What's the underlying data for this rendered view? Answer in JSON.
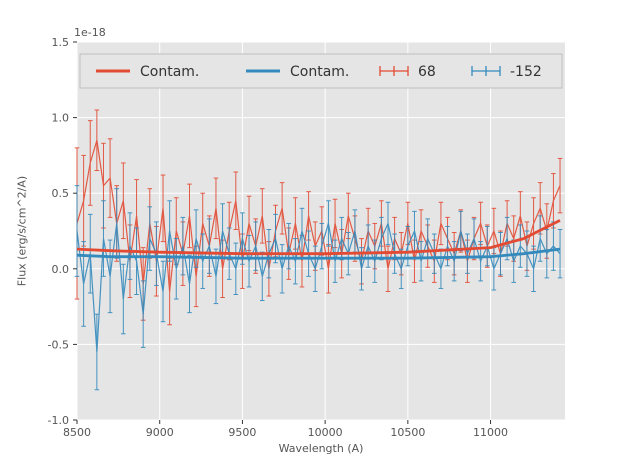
{
  "figure": {
    "background": "#ffffff",
    "plot_background": "#e5e5e5",
    "grid_color": "#ffffff",
    "text_color": "#555555",
    "red": "#E24A33",
    "blue": "#348ABD"
  },
  "chart_data": {
    "type": "line",
    "title": "",
    "xlabel": "Wavelength (A)",
    "ylabel": "Flux (erg/s/cm^2/A)",
    "offset_text": "1e-18",
    "xlim": [
      8500,
      11450
    ],
    "ylim": [
      -1.0,
      1.5
    ],
    "x_ticks": [
      8500,
      9000,
      9500,
      10000,
      10500,
      11000
    ],
    "y_ticks": [
      -1.0,
      -0.5,
      0.0,
      0.5,
      1.0,
      1.5
    ],
    "grid": true,
    "legend_position": "top",
    "legend": [
      {
        "label": "Contam.",
        "color": "#E24A33",
        "type": "line"
      },
      {
        "label": "Contam.",
        "color": "#348ABD",
        "type": "line"
      },
      {
        "label": "68",
        "color": "#E24A33",
        "type": "errorbar"
      },
      {
        "label": "-152",
        "color": "#348ABD",
        "type": "errorbar"
      }
    ],
    "x": [
      8500,
      8540,
      8580,
      8620,
      8660,
      8700,
      8740,
      8780,
      8820,
      8860,
      8900,
      8940,
      8980,
      9020,
      9060,
      9100,
      9140,
      9180,
      9220,
      9260,
      9300,
      9340,
      9380,
      9420,
      9460,
      9500,
      9540,
      9580,
      9620,
      9660,
      9700,
      9740,
      9780,
      9820,
      9860,
      9900,
      9940,
      9980,
      10020,
      10060,
      10100,
      10140,
      10180,
      10220,
      10260,
      10300,
      10340,
      10380,
      10420,
      10460,
      10500,
      10540,
      10580,
      10620,
      10660,
      10700,
      10740,
      10780,
      10820,
      10860,
      10900,
      10940,
      10980,
      11020,
      11060,
      11100,
      11140,
      11180,
      11220,
      11260,
      11300,
      11340,
      11380,
      11420
    ],
    "series": [
      {
        "name": "68",
        "type": "errorbar",
        "color": "#E24A33",
        "values": [
          0.3,
          0.45,
          0.7,
          0.85,
          0.55,
          0.6,
          0.3,
          0.45,
          0.05,
          0.35,
          -0.1,
          0.3,
          0.05,
          0.4,
          -0.15,
          0.25,
          0.1,
          0.35,
          -0.05,
          0.3,
          0.15,
          0.4,
          0.0,
          0.25,
          0.45,
          0.05,
          0.3,
          0.15,
          0.35,
          0.0,
          0.25,
          0.4,
          0.1,
          0.3,
          0.05,
          0.35,
          0.15,
          0.25,
          0.0,
          0.3,
          0.1,
          0.35,
          0.2,
          0.05,
          0.25,
          0.15,
          0.3,
          0.0,
          0.2,
          0.1,
          0.3,
          0.05,
          0.25,
          0.15,
          0.05,
          0.3,
          0.2,
          0.1,
          0.25,
          0.05,
          0.2,
          0.3,
          0.15,
          0.25,
          0.1,
          0.3,
          0.2,
          0.35,
          0.15,
          0.3,
          0.4,
          0.25,
          0.45,
          0.55
        ],
        "errors": [
          0.5,
          0.3,
          0.28,
          0.2,
          0.28,
          0.26,
          0.25,
          0.25,
          0.24,
          0.24,
          0.24,
          0.23,
          0.23,
          0.22,
          0.22,
          0.22,
          0.21,
          0.21,
          0.2,
          0.2,
          0.2,
          0.2,
          0.19,
          0.19,
          0.19,
          0.18,
          0.18,
          0.18,
          0.18,
          0.18,
          0.17,
          0.17,
          0.17,
          0.17,
          0.17,
          0.16,
          0.16,
          0.16,
          0.16,
          0.16,
          0.16,
          0.15,
          0.15,
          0.15,
          0.15,
          0.15,
          0.15,
          0.15,
          0.14,
          0.14,
          0.14,
          0.14,
          0.14,
          0.14,
          0.14,
          0.14,
          0.14,
          0.14,
          0.14,
          0.14,
          0.14,
          0.14,
          0.14,
          0.15,
          0.15,
          0.15,
          0.15,
          0.16,
          0.16,
          0.17,
          0.17,
          0.18,
          0.18,
          0.18
        ]
      },
      {
        "name": "-152",
        "type": "errorbar",
        "color": "#348ABD",
        "values": [
          0.25,
          -0.1,
          0.1,
          -0.55,
          0.2,
          -0.05,
          0.3,
          -0.2,
          0.15,
          0.05,
          -0.3,
          0.2,
          0.1,
          -0.15,
          0.25,
          0.0,
          0.15,
          -0.1,
          0.2,
          0.05,
          0.15,
          -0.05,
          0.25,
          0.1,
          0.0,
          0.2,
          0.05,
          0.15,
          -0.05,
          0.1,
          0.2,
          0.0,
          0.15,
          0.05,
          0.25,
          0.1,
          0.0,
          0.15,
          0.3,
          0.05,
          0.2,
          0.1,
          0.25,
          0.0,
          0.15,
          0.05,
          0.2,
          0.3,
          0.1,
          0.0,
          0.15,
          0.25,
          0.05,
          0.2,
          0.1,
          0.0,
          0.15,
          0.05,
          0.25,
          0.1,
          0.2,
          0.05,
          0.15,
          0.0,
          0.1,
          0.2,
          0.05,
          0.15,
          0.1,
          0.0,
          0.2,
          0.1,
          0.15,
          0.1
        ],
        "errors": [
          0.3,
          0.28,
          0.26,
          0.25,
          0.25,
          0.24,
          0.23,
          0.23,
          0.22,
          0.22,
          0.22,
          0.21,
          0.21,
          0.2,
          0.2,
          0.2,
          0.19,
          0.19,
          0.19,
          0.18,
          0.18,
          0.18,
          0.18,
          0.17,
          0.17,
          0.17,
          0.17,
          0.16,
          0.16,
          0.16,
          0.16,
          0.16,
          0.15,
          0.15,
          0.15,
          0.15,
          0.15,
          0.15,
          0.15,
          0.14,
          0.14,
          0.14,
          0.14,
          0.14,
          0.14,
          0.14,
          0.14,
          0.14,
          0.13,
          0.13,
          0.13,
          0.13,
          0.13,
          0.13,
          0.13,
          0.13,
          0.13,
          0.13,
          0.13,
          0.13,
          0.13,
          0.13,
          0.13,
          0.14,
          0.14,
          0.14,
          0.14,
          0.14,
          0.15,
          0.15,
          0.15,
          0.16,
          0.16,
          0.16
        ]
      },
      {
        "name": "Contam.",
        "type": "line",
        "color": "#E24A33",
        "x": [
          8500,
          8700,
          9000,
          9500,
          10000,
          10500,
          11000,
          11200,
          11420
        ],
        "values": [
          0.13,
          0.12,
          0.11,
          0.1,
          0.1,
          0.11,
          0.14,
          0.2,
          0.32
        ]
      },
      {
        "name": "Contam.",
        "type": "line",
        "color": "#348ABD",
        "x": [
          8500,
          8700,
          9000,
          9500,
          10000,
          10500,
          11000,
          11200,
          11420
        ],
        "values": [
          0.09,
          0.08,
          0.08,
          0.07,
          0.07,
          0.07,
          0.08,
          0.1,
          0.13
        ]
      }
    ]
  }
}
